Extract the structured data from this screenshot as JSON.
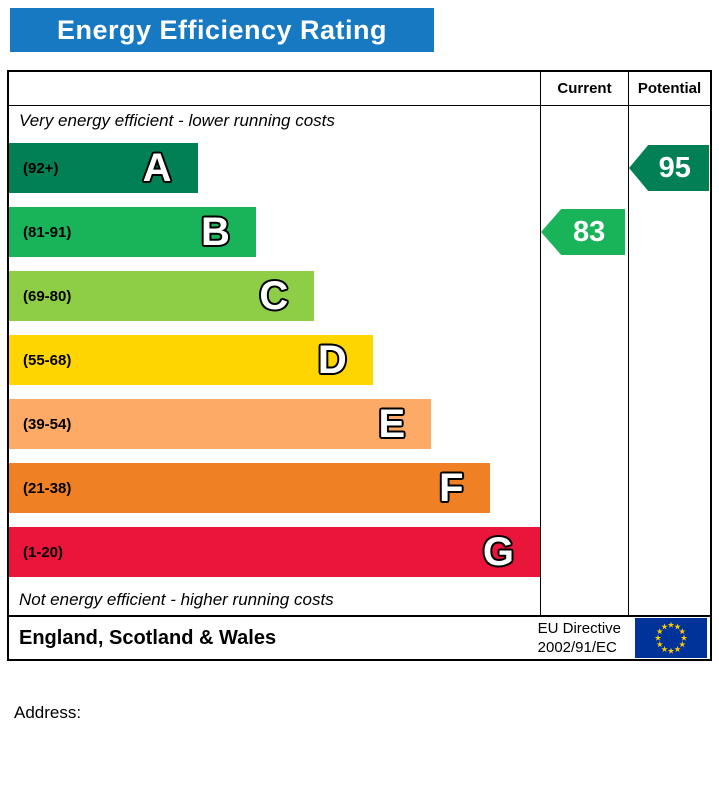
{
  "header": {
    "title": "Energy Efficiency Rating",
    "bg_color": "#1779c1"
  },
  "columns": {
    "current_label": "Current",
    "potential_label": "Potential"
  },
  "notes": {
    "top": "Very energy efficient - lower running costs",
    "bottom": "Not energy efficient - higher running costs"
  },
  "chart_data": {
    "type": "bar",
    "title": "Energy Efficiency Rating",
    "categories": [
      "A",
      "B",
      "C",
      "D",
      "E",
      "F",
      "G"
    ],
    "bands": [
      {
        "letter": "A",
        "range_label": "(92+)",
        "color": "#008054",
        "width_pct": 35.5
      },
      {
        "letter": "B",
        "range_label": "(81-91)",
        "color": "#19b459",
        "width_pct": 46.5
      },
      {
        "letter": "C",
        "range_label": "(69-80)",
        "color": "#8dce46",
        "width_pct": 57.5
      },
      {
        "letter": "D",
        "range_label": "(55-68)",
        "color": "#ffd500",
        "width_pct": 68.5
      },
      {
        "letter": "E",
        "range_label": "(39-54)",
        "color": "#fcaa65",
        "width_pct": 79.5
      },
      {
        "letter": "F",
        "range_label": "(21-38)",
        "color": "#ef8023",
        "width_pct": 90.5
      },
      {
        "letter": "G",
        "range_label": "(1-20)",
        "color": "#e9153b",
        "width_pct": 100
      }
    ],
    "current": {
      "value": "83",
      "band": "B",
      "color": "#19b459"
    },
    "potential": {
      "value": "95",
      "band": "A",
      "color": "#008054"
    }
  },
  "footer": {
    "region": "England, Scotland & Wales",
    "directive_line1": "EU Directive",
    "directive_line2": "2002/91/EC",
    "eu_flag": {
      "bg": "#003399",
      "star": "#ffcc00"
    }
  },
  "address_label": "Address:"
}
